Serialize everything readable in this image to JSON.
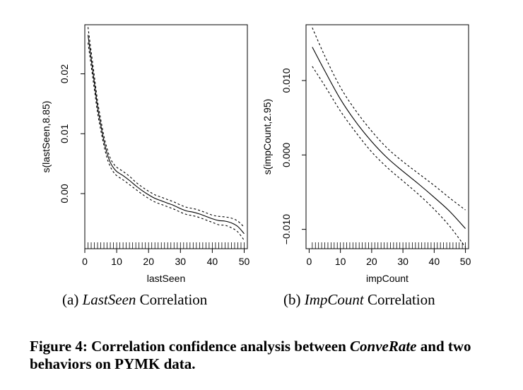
{
  "chart_data": [
    {
      "type": "line",
      "panel": "a",
      "xlabel": "lastSeen",
      "ylabel": "s(lastSeen,8.85)",
      "xlim": [
        0,
        51
      ],
      "ylim": [
        -0.0092,
        0.0282
      ],
      "xticks": [
        0,
        10,
        20,
        30,
        40,
        50
      ],
      "xtick_labels": [
        "0",
        "10",
        "20",
        "30",
        "40",
        "50"
      ],
      "yticks": [
        0.0,
        0.01,
        0.02
      ],
      "ytick_labels": [
        "0.00",
        "0.01",
        "0.02"
      ],
      "rug": "dense ticks at integer lastSeen values 1–50",
      "series": [
        {
          "name": "fit",
          "style": "solid",
          "x": [
            1,
            2,
            3,
            4,
            5,
            6,
            7,
            8,
            9,
            10,
            12,
            14,
            16,
            18,
            20,
            22,
            24,
            26,
            28,
            30,
            32,
            34,
            36,
            38,
            40,
            42,
            44,
            46,
            48,
            50
          ],
          "y": [
            0.0265,
            0.0225,
            0.0185,
            0.0145,
            0.0115,
            0.0088,
            0.0067,
            0.0052,
            0.0043,
            0.0037,
            0.003,
            0.0022,
            0.0013,
            0.0005,
            -0.0002,
            -0.0008,
            -0.0012,
            -0.0016,
            -0.002,
            -0.0025,
            -0.0029,
            -0.0031,
            -0.0034,
            -0.0038,
            -0.0042,
            -0.0045,
            -0.0046,
            -0.0049,
            -0.0055,
            -0.0067
          ]
        },
        {
          "name": "upper",
          "style": "dashed",
          "x": [
            1,
            2,
            3,
            4,
            5,
            6,
            7,
            8,
            9,
            10,
            12,
            14,
            16,
            18,
            20,
            22,
            24,
            26,
            28,
            30,
            32,
            34,
            36,
            38,
            40,
            42,
            44,
            46,
            48,
            50
          ],
          "y": [
            0.0278,
            0.0237,
            0.0196,
            0.0155,
            0.0124,
            0.0096,
            0.0075,
            0.0059,
            0.005,
            0.0044,
            0.0037,
            0.0029,
            0.0019,
            0.0011,
            0.0004,
            -0.0002,
            -0.0006,
            -0.001,
            -0.0014,
            -0.0019,
            -0.0023,
            -0.0025,
            -0.0028,
            -0.0032,
            -0.0036,
            -0.0038,
            -0.0039,
            -0.0041,
            -0.0046,
            -0.0056
          ]
        },
        {
          "name": "lower",
          "style": "dashed",
          "x": [
            1,
            2,
            3,
            4,
            5,
            6,
            7,
            8,
            9,
            10,
            12,
            14,
            16,
            18,
            20,
            22,
            24,
            26,
            28,
            30,
            32,
            34,
            36,
            38,
            40,
            42,
            44,
            46,
            48,
            50
          ],
          "y": [
            0.0252,
            0.0213,
            0.0174,
            0.0135,
            0.0106,
            0.008,
            0.0059,
            0.0045,
            0.0036,
            0.003,
            0.0023,
            0.0015,
            0.0007,
            -0.0001,
            -0.0008,
            -0.0014,
            -0.0018,
            -0.0022,
            -0.0026,
            -0.0031,
            -0.0035,
            -0.0037,
            -0.004,
            -0.0044,
            -0.0048,
            -0.0052,
            -0.0053,
            -0.0057,
            -0.0064,
            -0.0078
          ]
        }
      ]
    },
    {
      "type": "line",
      "panel": "b",
      "xlabel": "impCount",
      "ylabel": "s(impCount,2.95)",
      "xlim": [
        -1,
        51
      ],
      "ylim": [
        -0.0126,
        0.0175
      ],
      "xticks": [
        0,
        10,
        20,
        30,
        40,
        50
      ],
      "xtick_labels": [
        "0",
        "10",
        "20",
        "30",
        "40",
        "50"
      ],
      "yticks": [
        -0.01,
        0.0,
        0.01
      ],
      "ytick_labels": [
        "−0.010",
        "0.000",
        "0.010"
      ],
      "rug": "dense ticks at integer impCount values 1–50",
      "series": [
        {
          "name": "fit",
          "style": "solid",
          "x": [
            1,
            5,
            10,
            15,
            20,
            25,
            30,
            35,
            40,
            45,
            50
          ],
          "y": [
            0.0145,
            0.0113,
            0.0075,
            0.0044,
            0.0018,
            -0.0004,
            -0.0022,
            -0.0039,
            -0.0057,
            -0.0076,
            -0.0099
          ]
        },
        {
          "name": "upper",
          "style": "dashed",
          "x": [
            1,
            5,
            10,
            15,
            20,
            25,
            30,
            35,
            40,
            45,
            50
          ],
          "y": [
            0.0171,
            0.0133,
            0.0091,
            0.0059,
            0.0032,
            0.0009,
            -0.0009,
            -0.0025,
            -0.0041,
            -0.0058,
            -0.0074
          ]
        },
        {
          "name": "lower",
          "style": "dashed",
          "x": [
            1,
            5,
            10,
            15,
            20,
            25,
            30,
            35,
            40,
            45,
            50
          ],
          "y": [
            0.0119,
            0.0093,
            0.0059,
            0.003,
            0.0004,
            -0.0017,
            -0.0035,
            -0.0053,
            -0.0073,
            -0.0096,
            -0.0124
          ]
        }
      ]
    }
  ],
  "captions": {
    "a": {
      "prefix": "(a)",
      "emph": "LastSeen",
      "suffix": "Correlation"
    },
    "b": {
      "prefix": "(b)",
      "emph": "ImpCount",
      "suffix": "Correlation"
    }
  },
  "figure_caption": {
    "lead": "Figure 4:  Correlation confidence analysis between",
    "emph": "ConveRate",
    "tail": "and two behaviors on PYMK data."
  }
}
